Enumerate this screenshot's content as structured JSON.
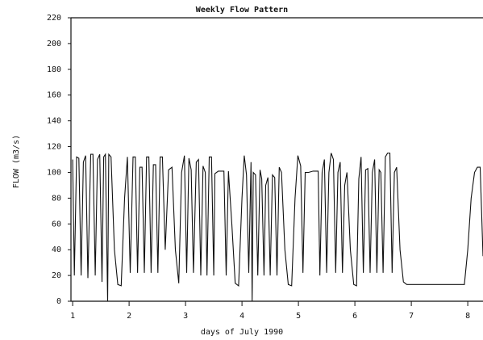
{
  "chart_data": {
    "type": "line",
    "title": "Weekly Flow Pattern",
    "x_label": "days of July 1990",
    "y_label": "FLOW (m3/s)",
    "x": [
      1.0,
      1.03,
      1.07,
      1.11,
      1.15,
      1.19,
      1.23,
      1.27,
      1.32,
      1.36,
      1.4,
      1.44,
      1.48,
      1.52,
      1.55,
      1.58,
      1.62,
      1.64,
      1.68,
      1.74,
      1.8,
      1.86,
      1.92,
      1.97,
      2.02,
      2.07,
      2.11,
      2.15,
      2.19,
      2.23,
      2.27,
      2.31,
      2.35,
      2.39,
      2.43,
      2.47,
      2.51,
      2.55,
      2.59,
      2.64,
      2.7,
      2.76,
      2.82,
      2.88,
      2.93,
      2.98,
      3.02,
      3.06,
      3.1,
      3.14,
      3.19,
      3.23,
      3.27,
      3.31,
      3.35,
      3.38,
      3.42,
      3.46,
      3.5,
      3.52,
      3.58,
      3.68,
      3.72,
      3.76,
      3.82,
      3.88,
      3.94,
      4.0,
      4.04,
      4.08,
      4.12,
      4.16,
      4.18,
      4.2,
      4.24,
      4.28,
      4.32,
      4.35,
      4.39,
      4.42,
      4.46,
      4.5,
      4.54,
      4.58,
      4.62,
      4.66,
      4.7,
      4.76,
      4.82,
      4.88,
      4.94,
      4.99,
      5.04,
      5.08,
      5.12,
      5.18,
      5.26,
      5.35,
      5.38,
      5.42,
      5.46,
      5.5,
      5.54,
      5.58,
      5.62,
      5.66,
      5.7,
      5.74,
      5.78,
      5.82,
      5.86,
      5.92,
      5.98,
      6.03,
      6.07,
      6.11,
      6.15,
      6.19,
      6.23,
      6.27,
      6.31,
      6.35,
      6.39,
      6.43,
      6.46,
      6.5,
      6.54,
      6.58,
      6.62,
      6.66,
      6.7,
      6.74,
      6.8,
      6.86,
      6.92,
      7.5,
      7.94,
      8.0,
      8.06,
      8.12,
      8.17,
      8.22,
      8.27
    ],
    "series": [
      {
        "color": "#111111",
        "values": [
          110,
          20,
          112,
          111,
          20,
          108,
          113,
          18,
          114,
          114,
          20,
          110,
          114,
          15,
          112,
          114,
          0,
          114,
          112,
          40,
          13,
          12,
          80,
          112,
          22,
          112,
          112,
          22,
          104,
          104,
          22,
          112,
          112,
          22,
          106,
          106,
          22,
          112,
          112,
          40,
          102,
          104,
          40,
          14,
          100,
          113,
          22,
          111,
          102,
          22,
          108,
          110,
          20,
          105,
          100,
          20,
          112,
          112,
          20,
          99,
          101,
          101,
          20,
          101,
          60,
          14,
          12,
          80,
          113,
          98,
          22,
          108,
          0,
          100,
          98,
          20,
          102,
          95,
          20,
          90,
          96,
          20,
          98,
          96,
          20,
          104,
          100,
          40,
          13,
          12,
          80,
          113,
          105,
          22,
          100,
          100,
          101,
          101,
          20,
          100,
          110,
          22,
          100,
          115,
          110,
          22,
          100,
          108,
          22,
          90,
          100,
          40,
          13,
          12,
          95,
          112,
          22,
          102,
          103,
          22,
          100,
          110,
          22,
          102,
          100,
          22,
          112,
          115,
          115,
          22,
          100,
          104,
          40,
          15,
          13,
          13,
          13,
          40,
          80,
          100,
          104,
          104,
          35
        ]
      }
    ],
    "xlim": [
      0.97,
      8.27
    ],
    "ylim": [
      0,
      220
    ],
    "xticks": [
      1,
      2,
      3,
      4,
      5,
      6,
      7,
      8
    ],
    "yticks": [
      0,
      20,
      40,
      60,
      80,
      100,
      120,
      140,
      160,
      180,
      200,
      220
    ]
  }
}
